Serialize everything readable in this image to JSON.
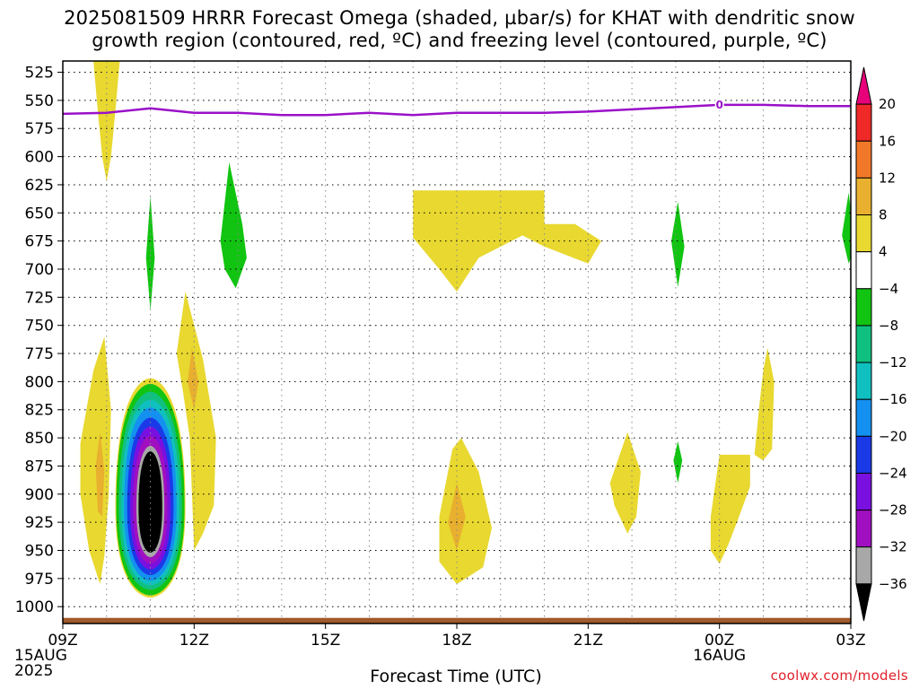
{
  "title": {
    "line1": "2025081509 HRRR Forecast Omega (shaded, µbar/s) for KHAT with dendritic snow",
    "line2": "growth region (contoured, red, ºC) and freezing level (contoured, purple, ºC)"
  },
  "credit": "coolwx.com/models",
  "chart_data": {
    "type": "heatmap",
    "xlabel": "Forecast Time (UTC)",
    "ylabel": "",
    "x_range_hours": [
      0,
      18
    ],
    "y_range_mb": [
      515,
      1015
    ],
    "y_reversed": true,
    "grid": true,
    "x_ticks": [
      {
        "hour": 0,
        "label": "09Z",
        "sub": [
          "15AUG",
          "2025"
        ]
      },
      {
        "hour": 3,
        "label": "12Z",
        "sub": []
      },
      {
        "hour": 6,
        "label": "15Z",
        "sub": []
      },
      {
        "hour": 9,
        "label": "18Z",
        "sub": []
      },
      {
        "hour": 12,
        "label": "21Z",
        "sub": []
      },
      {
        "hour": 15,
        "label": "00Z",
        "sub": [
          "16AUG"
        ]
      },
      {
        "hour": 18,
        "label": "03Z",
        "sub": []
      }
    ],
    "y_ticks": [
      525,
      550,
      575,
      600,
      625,
      650,
      675,
      700,
      725,
      750,
      775,
      800,
      825,
      850,
      875,
      900,
      925,
      950,
      975,
      1000
    ],
    "colorbar": {
      "labels": [
        "20",
        "16",
        "12",
        "8",
        "4",
        "−4",
        "−8",
        "−12",
        "−16",
        "−20",
        "−24",
        "−28",
        "−32",
        "−36"
      ],
      "colors": [
        "#e8007a",
        "#ef2828",
        "#f07828",
        "#e8b02e",
        "#e8d830",
        "#ffffff",
        "#11c411",
        "#10c080",
        "#10c0c0",
        "#1490f0",
        "#1a3ae8",
        "#7a10e0",
        "#a010c0",
        "#a8a8a8",
        "#000000"
      ]
    },
    "freezing_level": {
      "color": "#9a10c8",
      "label": "0",
      "label_hour": 15.0,
      "points": [
        [
          0,
          562
        ],
        [
          1,
          561
        ],
        [
          2,
          557
        ],
        [
          3,
          561
        ],
        [
          4,
          561
        ],
        [
          5,
          563
        ],
        [
          6,
          563
        ],
        [
          7,
          561
        ],
        [
          8,
          563
        ],
        [
          9,
          561
        ],
        [
          10,
          561
        ],
        [
          11,
          561
        ],
        [
          12,
          560
        ],
        [
          13,
          558
        ],
        [
          14,
          556
        ],
        [
          15,
          554
        ],
        [
          16,
          554
        ],
        [
          17,
          555
        ],
        [
          18,
          555
        ]
      ]
    },
    "surface_band": {
      "color": "#a05a2c",
      "pressure_mb": [
        1010,
        1015
      ]
    },
    "omega_regions": [
      {
        "value_class": 4,
        "color": "#e8d830",
        "points": [
          [
            0.7,
            515
          ],
          [
            1.3,
            515
          ],
          [
            1.2,
            560
          ],
          [
            1.1,
            600
          ],
          [
            1.0,
            622
          ],
          [
            0.9,
            600
          ],
          [
            0.8,
            560
          ]
        ]
      },
      {
        "value_class": 4,
        "color": "#e8d830",
        "points": [
          [
            0.4,
            855
          ],
          [
            0.7,
            790
          ],
          [
            0.95,
            760
          ],
          [
            1.1,
            825
          ],
          [
            1.05,
            900
          ],
          [
            0.95,
            955
          ],
          [
            0.85,
            980
          ],
          [
            0.6,
            950
          ],
          [
            0.4,
            900
          ]
        ]
      },
      {
        "value_class": 8,
        "color": "#e8b02e",
        "points": [
          [
            0.75,
            875
          ],
          [
            0.85,
            845
          ],
          [
            0.95,
            880
          ],
          [
            0.9,
            920
          ],
          [
            0.8,
            915
          ]
        ]
      },
      {
        "value_class": 4,
        "color": "#e8d830",
        "points": [
          [
            2.6,
            775
          ],
          [
            2.8,
            720
          ],
          [
            3.2,
            780
          ],
          [
            3.5,
            850
          ],
          [
            3.45,
            910
          ],
          [
            3.2,
            935
          ],
          [
            3.0,
            950
          ],
          [
            2.9,
            850
          ],
          [
            2.75,
            810
          ]
        ]
      },
      {
        "value_class": 8,
        "color": "#e8b02e",
        "points": [
          [
            2.85,
            800
          ],
          [
            2.95,
            770
          ],
          [
            3.1,
            800
          ],
          [
            3.0,
            825
          ]
        ]
      },
      {
        "value_class": -8,
        "color": "#11c411",
        "points": [
          [
            1.9,
            690
          ],
          [
            2.0,
            635
          ],
          [
            2.1,
            690
          ],
          [
            2.0,
            737
          ]
        ]
      },
      {
        "value_class": -8,
        "color": "#11c411",
        "points": [
          [
            3.6,
            675
          ],
          [
            3.8,
            605
          ],
          [
            4.1,
            660
          ],
          [
            4.2,
            690
          ],
          [
            3.95,
            717
          ],
          [
            3.7,
            700
          ]
        ]
      },
      {
        "value_class": 4,
        "color": "#e8d830",
        "points": [
          [
            8.0,
            630
          ],
          [
            11.0,
            630
          ],
          [
            11.0,
            660
          ],
          [
            11.7,
            660
          ],
          [
            12.3,
            675
          ],
          [
            12.0,
            695
          ],
          [
            11.0,
            680
          ],
          [
            10.5,
            670
          ],
          [
            9.5,
            690
          ],
          [
            9.0,
            720
          ],
          [
            8.6,
            700
          ],
          [
            8.0,
            672
          ]
        ]
      },
      {
        "value_class": 4,
        "color": "#e8d830",
        "points": [
          [
            8.6,
            920
          ],
          [
            8.9,
            860
          ],
          [
            9.1,
            850
          ],
          [
            9.5,
            880
          ],
          [
            9.8,
            930
          ],
          [
            9.6,
            965
          ],
          [
            9.0,
            980
          ],
          [
            8.6,
            960
          ]
        ]
      },
      {
        "value_class": 8,
        "color": "#e8b02e",
        "points": [
          [
            8.8,
            925
          ],
          [
            9.0,
            890
          ],
          [
            9.2,
            920
          ],
          [
            9.0,
            950
          ]
        ]
      },
      {
        "value_class": 4,
        "color": "#e8d830",
        "points": [
          [
            12.5,
            890
          ],
          [
            12.9,
            845
          ],
          [
            13.2,
            880
          ],
          [
            13.1,
            920
          ],
          [
            12.9,
            935
          ],
          [
            12.6,
            910
          ]
        ]
      },
      {
        "value_class": 4,
        "color": "#e8d830",
        "points": [
          [
            14.8,
            920
          ],
          [
            15.0,
            865
          ],
          [
            15.7,
            865
          ],
          [
            15.7,
            893
          ],
          [
            15.4,
            925
          ],
          [
            15.2,
            945
          ],
          [
            15.0,
            962
          ],
          [
            14.8,
            950
          ]
        ]
      },
      {
        "value_class": 4,
        "color": "#e8d830",
        "points": [
          [
            15.8,
            865
          ],
          [
            15.9,
            825
          ],
          [
            16.0,
            790
          ],
          [
            16.1,
            770
          ],
          [
            16.25,
            800
          ],
          [
            16.2,
            860
          ],
          [
            16.0,
            870
          ]
        ]
      },
      {
        "value_class": -8,
        "color": "#11c411",
        "points": [
          [
            13.9,
            675
          ],
          [
            14.05,
            640
          ],
          [
            14.2,
            680
          ],
          [
            14.05,
            716
          ]
        ]
      },
      {
        "value_class": -8,
        "color": "#11c411",
        "points": [
          [
            13.95,
            870
          ],
          [
            14.05,
            853
          ],
          [
            14.15,
            870
          ],
          [
            14.05,
            890
          ]
        ]
      },
      {
        "value_class": -8,
        "color": "#11c411",
        "points": [
          [
            17.8,
            670
          ],
          [
            17.95,
            632
          ],
          [
            18.1,
            680
          ],
          [
            17.95,
            695
          ]
        ]
      }
    ],
    "omega_core": {
      "center_hour": 2.0,
      "center_mb": 912,
      "rings": [
        {
          "value_class": 4,
          "color": "#e8d830",
          "rx": 0.8,
          "ry_top": 115,
          "ry_bottom": 80
        },
        {
          "value_class": -8,
          "color": "#11c411",
          "rx": 0.78,
          "ry_top": 110,
          "ry_bottom": 78
        },
        {
          "value_class": -12,
          "color": "#10c080",
          "rx": 0.72,
          "ry_top": 103,
          "ry_bottom": 73
        },
        {
          "value_class": -16,
          "color": "#10c0c0",
          "rx": 0.66,
          "ry_top": 96,
          "ry_bottom": 69
        },
        {
          "value_class": -20,
          "color": "#1490f0",
          "rx": 0.6,
          "ry_top": 89,
          "ry_bottom": 65
        },
        {
          "value_class": -24,
          "color": "#1a3ae8",
          "rx": 0.53,
          "ry_top": 80,
          "ry_bottom": 60
        },
        {
          "value_class": -28,
          "color": "#7a10e0",
          "rx": 0.46,
          "ry_top": 72,
          "ry_bottom": 55
        },
        {
          "value_class": -32,
          "color": "#a010c0",
          "rx": 0.39,
          "ry_top": 64,
          "ry_bottom": 50
        },
        {
          "value_class": -36,
          "color": "#a8a8a8",
          "rx": 0.32,
          "ry_top": 55,
          "ry_bottom": 44
        },
        {
          "value_class": -40,
          "color": "#000000",
          "rx": 0.27,
          "ry_top": 50,
          "ry_bottom": 40
        }
      ]
    }
  }
}
